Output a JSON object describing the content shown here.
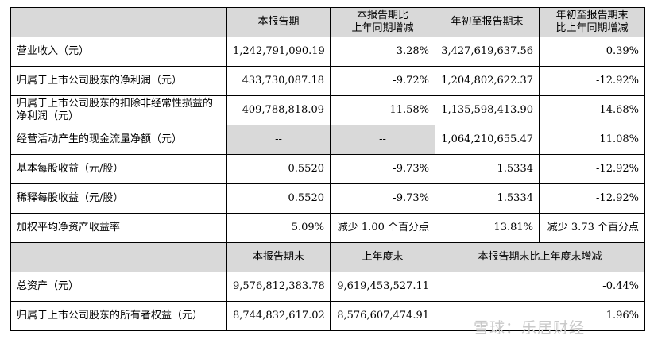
{
  "header": {
    "col1": "本报告期",
    "col2_line1": "本报告期比",
    "col2_line2": "上年同期增减",
    "col3": "年初至报告期末",
    "col4_line1": "年初至报告期末",
    "col4_line2": "比上年同期增减"
  },
  "rows": [
    {
      "label": "营业收入（元）",
      "v1": "1,242,791,090.19",
      "v2": "3.28%",
      "v3": "3,427,619,637.56",
      "v4": "0.39%"
    },
    {
      "label": "归属于上市公司股东的净利润（元）",
      "v1": "433,730,087.18",
      "v2": "-9.72%",
      "v3": "1,204,802,622.37",
      "v4": "-12.92%"
    },
    {
      "label": "归属于上市公司股东的扣除非经常性损益的净利润（元）",
      "v1": "409,788,818.09",
      "v2": "-11.58%",
      "v3": "1,135,598,413.90",
      "v4": "-14.68%"
    },
    {
      "label": "经营活动产生的现金流量净额（元）",
      "v1": "--",
      "v2": "--",
      "v3": "1,064,210,655.47",
      "v4": "11.08%"
    },
    {
      "label": "基本每股收益（元/股）",
      "v1": "0.5520",
      "v2": "-9.73%",
      "v3": "1.5334",
      "v4": "-12.92%"
    },
    {
      "label": "稀释每股收益（元/股）",
      "v1": "0.5520",
      "v2": "-9.73%",
      "v3": "1.5334",
      "v4": "-12.92%"
    },
    {
      "label": "加权平均净资产收益率",
      "v1": "5.09%",
      "v2": "减少 1.00 个百分点",
      "v3": "13.81%",
      "v4": "减少 3.73 个百分点"
    }
  ],
  "header2": {
    "col1": "本报告期末",
    "col2": "上年度末",
    "col3": "本报告期末比上年度末增减"
  },
  "rows2": [
    {
      "label": "总资产（元）",
      "v1": "9,576,812,383.78",
      "v2": "9,619,453,527.11",
      "v3": "-0.44%"
    },
    {
      "label": "归属于上市公司股东的所有者权益（元）",
      "v1": "8,744,832,617.02",
      "v2": "8,576,607,474.91",
      "v3": "1.96%"
    }
  ],
  "watermark": "雪球：乐居财经"
}
